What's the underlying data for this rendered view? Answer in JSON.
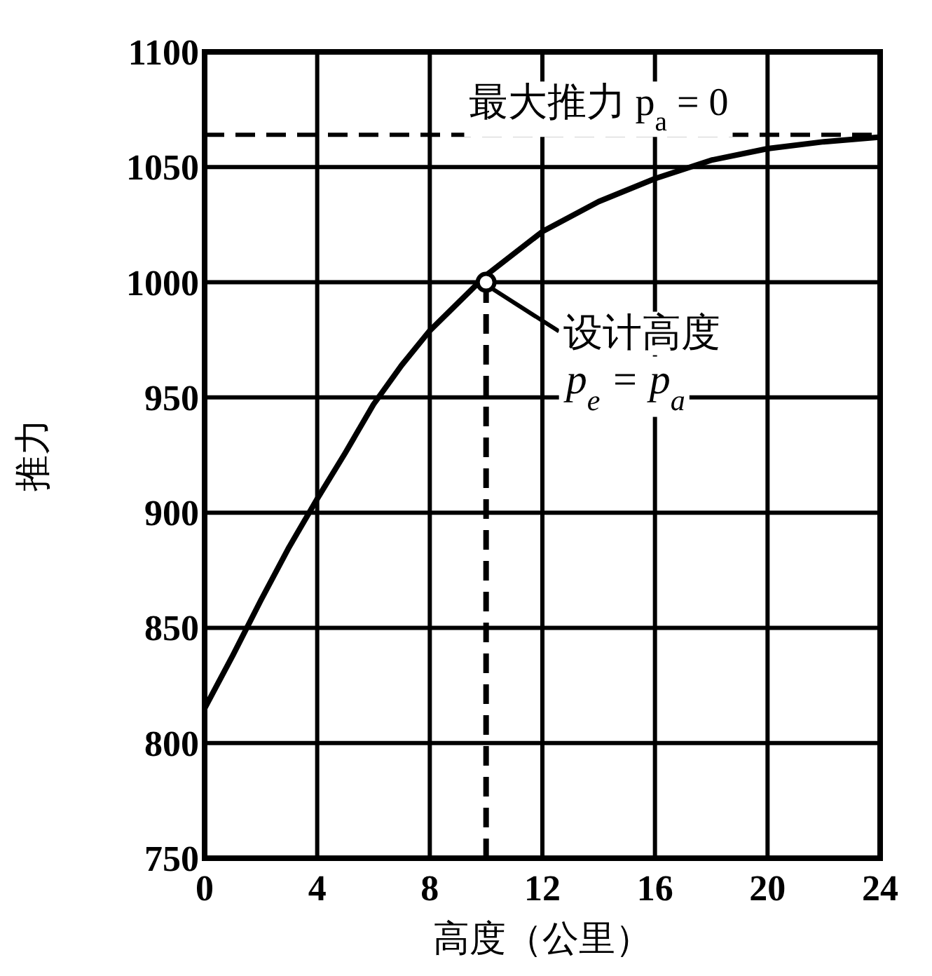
{
  "chart_data": {
    "type": "line",
    "xlabel": "高度（公里）",
    "ylabel": "推力",
    "xlim": [
      0,
      24
    ],
    "xticks": [
      0,
      4,
      8,
      12,
      16,
      20,
      24
    ],
    "ylim": [
      750,
      1100
    ],
    "yticks": [
      750,
      800,
      850,
      900,
      950,
      1000,
      1050,
      1100
    ],
    "grid": true,
    "series": [
      {
        "type": "line",
        "color": "#000000",
        "marker": "none",
        "line_style": "solid",
        "x": [
          0,
          1,
          2,
          3,
          4,
          5,
          6,
          7,
          8,
          9,
          10,
          12,
          14,
          16,
          18,
          20,
          22,
          24
        ],
        "values": [
          815,
          838,
          862,
          885,
          906,
          926,
          947,
          964,
          979,
          991,
          1003,
          1022,
          1035,
          1045,
          1053,
          1058,
          1061,
          1063
        ]
      },
      {
        "type": "line",
        "color": "#000000",
        "marker": "none",
        "line_style": "dashed",
        "x": [
          10,
          10
        ],
        "values": [
          750,
          1000
        ]
      },
      {
        "type": "scatter",
        "color": "#000000",
        "marker": "circle",
        "x": [
          10
        ],
        "values": [
          1000
        ]
      }
    ],
    "ref_lines": [
      {
        "axis": "y",
        "value": 1064,
        "line_style": "dashed",
        "color": "#000000"
      }
    ],
    "annotations": [
      "最大推力 p$_{a}$ = 0",
      {
        "text": "设计高度 p$_{e}$ = p$_{a}$",
        "x": 10,
        "y": 1000
      }
    ]
  }
}
